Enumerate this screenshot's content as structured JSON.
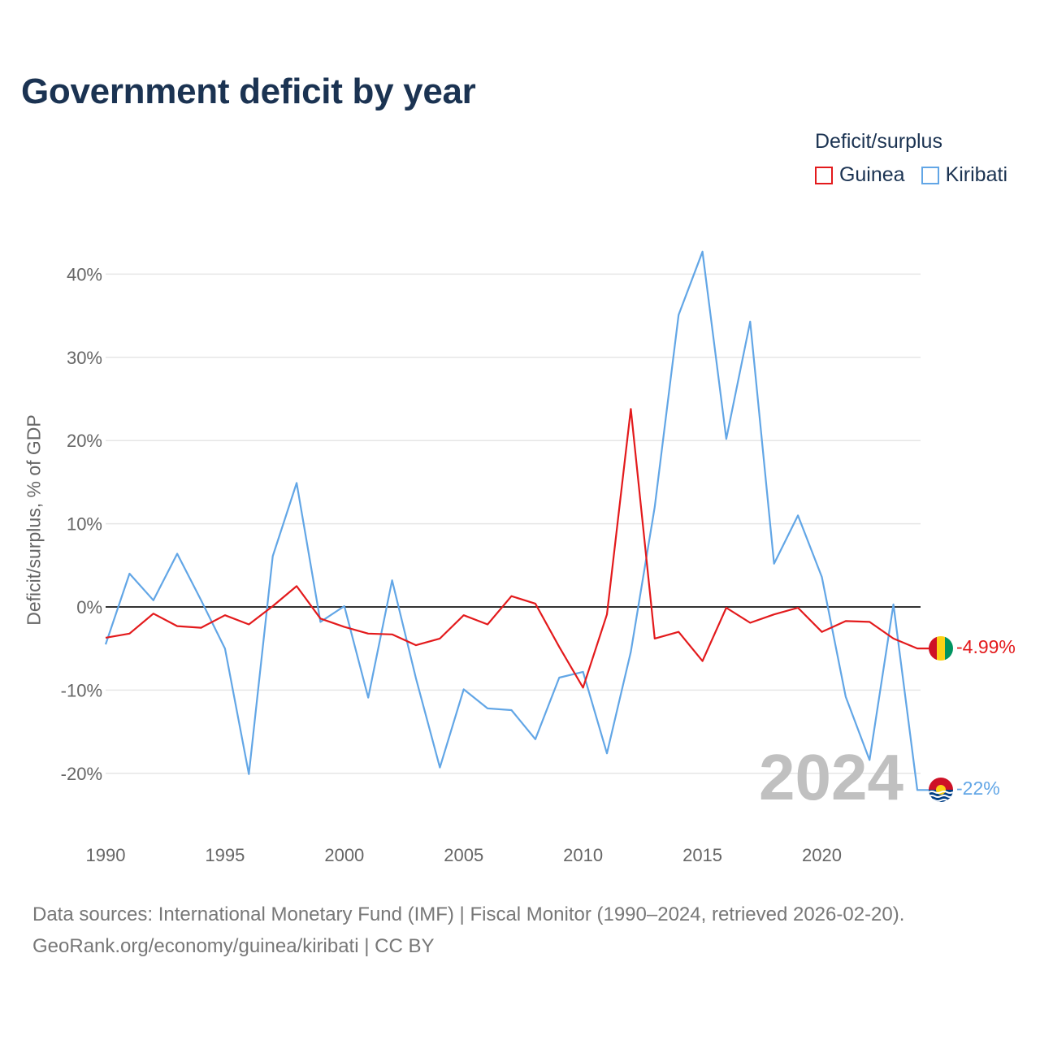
{
  "title": "Government deficit by year",
  "legend": {
    "title": "Deficit/surplus",
    "items": [
      {
        "name": "Guinea",
        "color": "#e31a1c"
      },
      {
        "name": "Kiribati",
        "color": "#62a6e6"
      }
    ]
  },
  "footer": {
    "line1": "Data sources: International Monetary Fund (IMF) | Fiscal Monitor (1990–2024, retrieved 2026-02-20).",
    "line2": "GeoRank.org/economy/guinea/kiribati | CC BY"
  },
  "chart_data": {
    "type": "line",
    "title": "Government deficit by year",
    "xlabel": "",
    "ylabel": "Deficit/surplus, % of GDP",
    "current_year": "2024",
    "x": [
      1990,
      1991,
      1992,
      1993,
      1994,
      1995,
      1996,
      1997,
      1998,
      1999,
      2000,
      2001,
      2002,
      2003,
      2004,
      2005,
      2006,
      2007,
      2008,
      2009,
      2010,
      2011,
      2012,
      2013,
      2014,
      2015,
      2016,
      2017,
      2018,
      2019,
      2020,
      2021,
      2022,
      2023,
      2024
    ],
    "xlim": [
      1990,
      2024
    ],
    "ylim": [
      -26,
      43
    ],
    "x_ticks": [
      1990,
      1995,
      2000,
      2005,
      2010,
      2015,
      2020
    ],
    "y_ticks": [
      40,
      30,
      20,
      10,
      0,
      -10,
      -20
    ],
    "y_tick_labels": [
      "40%",
      "30%",
      "20%",
      "10%",
      "0%",
      "-10%",
      "-20%"
    ],
    "grid": true,
    "legend_position": "top-right",
    "series": [
      {
        "name": "Guinea",
        "color": "#e31a1c",
        "end_label": "-4.99%",
        "values": [
          -3.7,
          -3.2,
          -0.8,
          -2.3,
          -2.5,
          -1.0,
          -2.1,
          0.1,
          2.5,
          -1.4,
          -2.4,
          -3.2,
          -3.3,
          -4.6,
          -3.8,
          -1.0,
          -2.1,
          1.3,
          0.4,
          -4.8,
          -9.7,
          -0.9,
          23.8,
          -3.8,
          -3.0,
          -6.5,
          -0.1,
          -1.9,
          -0.9,
          -0.1,
          -3.0,
          -1.7,
          -1.8,
          -3.8,
          -4.99
        ]
      },
      {
        "name": "Kiribati",
        "color": "#62a6e6",
        "end_label": "-22%",
        "values": [
          -4.5,
          4.0,
          0.8,
          6.4,
          0.8,
          -5.0,
          -20.1,
          6.1,
          14.9,
          -1.8,
          0.1,
          -10.9,
          3.2,
          -8.6,
          -19.3,
          -9.9,
          -12.2,
          -12.4,
          -15.9,
          -8.5,
          -7.8,
          -17.6,
          -5.4,
          12.0,
          35.1,
          42.7,
          20.2,
          34.3,
          5.2,
          11.0,
          3.6,
          -10.8,
          -18.4,
          0.3,
          -22.0
        ]
      }
    ]
  }
}
